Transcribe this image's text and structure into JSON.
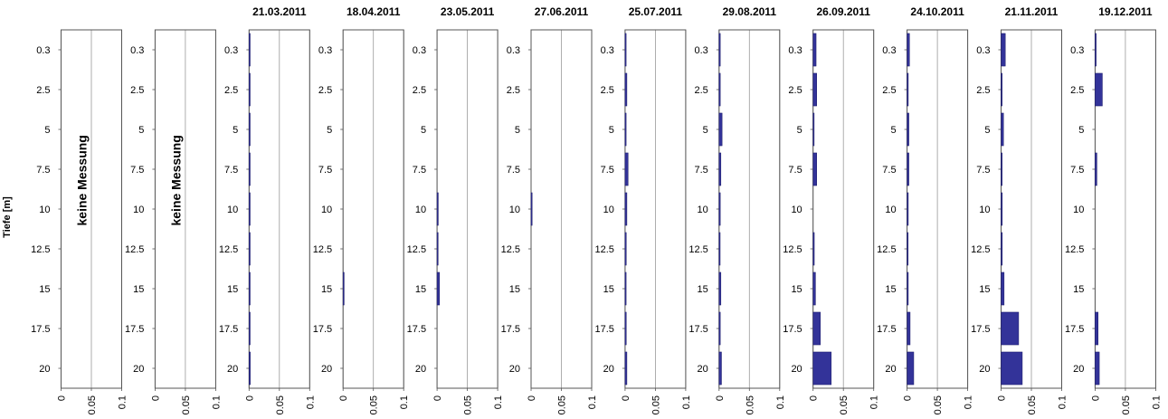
{
  "chart_data": {
    "type": "bar",
    "orientation": "horizontal",
    "ylabel": "Tiefe [m]",
    "depths": [
      "0.3",
      "2.5",
      "5",
      "7.5",
      "10",
      "12.5",
      "15",
      "17.5",
      "20"
    ],
    "xlim": [
      0,
      0.1
    ],
    "xticks": [
      "0",
      "0.05",
      "0.1"
    ],
    "grid": true,
    "bar_color": "#333399",
    "panels": [
      {
        "title": "",
        "note": "keine Messung",
        "values": null
      },
      {
        "title": "",
        "note": "keine Messung",
        "values": null
      },
      {
        "title": "21.03.2011",
        "note": "",
        "values": [
          0.001,
          0.0005,
          0.0005,
          0.001,
          0.0005,
          0.0005,
          0.0005,
          0.0005,
          0.002
        ]
      },
      {
        "title": "18.04.2011",
        "note": "",
        "values": [
          0,
          0,
          0,
          0,
          0,
          0,
          0.001,
          0,
          0
        ]
      },
      {
        "title": "23.05.2011",
        "note": "",
        "values": [
          0,
          0,
          0,
          0,
          0.002,
          0.001,
          0.004,
          0,
          0
        ]
      },
      {
        "title": "27.06.2011",
        "note": "",
        "values": [
          0,
          0,
          0,
          0,
          0.001,
          0,
          0,
          0,
          0
        ]
      },
      {
        "title": "25.07.2011",
        "note": "",
        "values": [
          0.001,
          0.003,
          0.001,
          0.005,
          0.003,
          0.002,
          0.001,
          0.002,
          0.003
        ]
      },
      {
        "title": "29.08.2011",
        "note": "",
        "values": [
          0.002,
          0.002,
          0.005,
          0.003,
          0.002,
          0.0005,
          0.003,
          0.002,
          0.004
        ]
      },
      {
        "title": "26.09.2011",
        "note": "",
        "values": [
          0.005,
          0.006,
          0.001,
          0.006,
          0,
          0.002,
          0.004,
          0.012,
          0.03
        ]
      },
      {
        "title": "24.10.2011",
        "note": "",
        "values": [
          0.004,
          0.002,
          0.003,
          0.003,
          0.002,
          0.001,
          0.002,
          0.005,
          0.011
        ]
      },
      {
        "title": "21.11.2011",
        "note": "",
        "values": [
          0.007,
          0.001,
          0.004,
          0.001,
          0.002,
          0.002,
          0.005,
          0.029,
          0.035
        ]
      },
      {
        "title": "19.12.2011",
        "note": "",
        "values": [
          0.001,
          0.012,
          0,
          0.003,
          0,
          0,
          0,
          0.005,
          0.007
        ]
      }
    ]
  }
}
